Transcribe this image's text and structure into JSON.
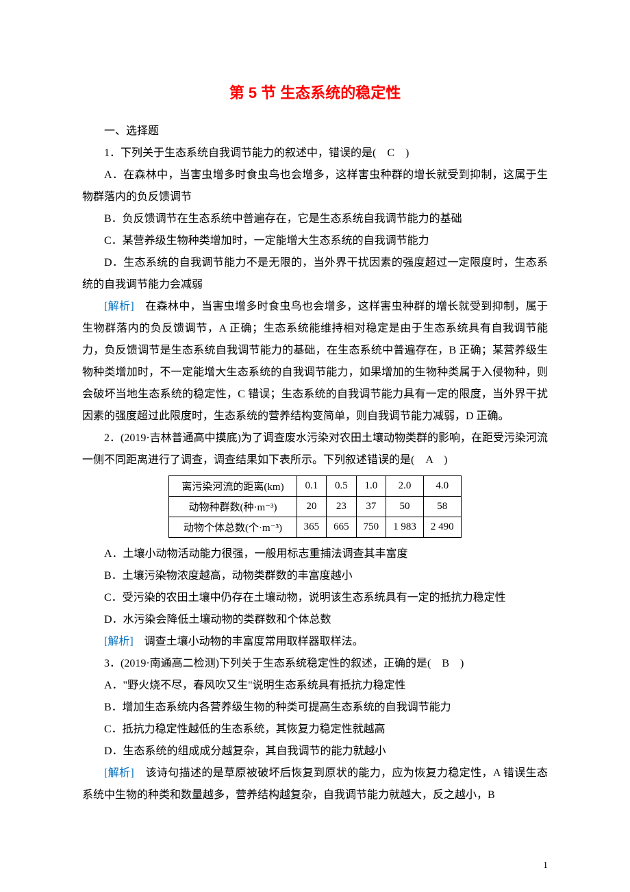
{
  "title": "第 5 节 生态系统的稳定性",
  "section1": "一、选择题",
  "q1": {
    "stem": "1．下列关于生态系统自我调节能力的叙述中，错误的是(　C　)",
    "A": "A．在森林中，当害虫增多时食虫鸟也会增多，这样害虫种群的增长就受到抑制，这属于生物群落内的负反馈调节",
    "B": "B．负反馈调节在生态系统中普遍存在，它是生态系统自我调节能力的基础",
    "C": "C．某营养级生物种类增加时，一定能增大生态系统的自我调节能力",
    "D": "D．生态系统的自我调节能力不是无限的，当外界干扰因素的强度超过一定限度时，生态系统的自我调节能力会减弱",
    "jiexi_label": "[解析]",
    "jiexi": "　在森林中，当害虫增多时食虫鸟也会增多，这样害虫种群的增长就受到抑制，属于生物群落内的负反馈调节，A 正确；生态系统能维持相对稳定是由于生态系统具有自我调节能力，负反馈调节是生态系统自我调节能力的基础，在生态系统中普遍存在，B 正确；某营养级生物种类增加时，不一定能增大生态系统的自我调节能力，如果增加的生物种类属于入侵物种，则会破坏当地生态系统的稳定性，C 错误；生态系统的自我调节能力具有一定的限度，当外界干扰因素的强度超过此限度时，生态系统的营养结构变简单，则自我调节能力减弱，D 正确。"
  },
  "q2": {
    "stem": "2．(2019·吉林普通高中摸底)为了调查废水污染对农田土壤动物类群的影响，在距受污染河流一侧不同距离进行了调查，调查结果如下表所示。下列叙述错误的是(　A　)",
    "table": {
      "rows": [
        {
          "label": "离污染河流的距离(km)",
          "c1": "0.1",
          "c2": "0.5",
          "c3": "1.0",
          "c4": "2.0",
          "c5": "4.0"
        },
        {
          "label": "动物种群数(种·m⁻³)",
          "c1": "20",
          "c2": "23",
          "c3": "37",
          "c4": "50",
          "c5": "58"
        },
        {
          "label": "动物个体总数(个·m⁻³)",
          "c1": "365",
          "c2": "665",
          "c3": "750",
          "c4": "1 983",
          "c5": "2 490"
        }
      ]
    },
    "A": "A．土壤小动物活动能力很强，一般用标志重捕法调查其丰富度",
    "B": "B．土壤污染物浓度越高，动物类群数的丰富度越小",
    "C": "C．受污染的农田土壤中仍存在土壤动物，说明该生态系统具有一定的抵抗力稳定性",
    "D": "D．水污染会降低土壤动物的类群数和个体总数",
    "jiexi_label": "[解析]",
    "jiexi": "　调查土壤小动物的丰富度常用取样器取样法。"
  },
  "q3": {
    "stem": "3．(2019·南通高二检测)下列关于生态系统稳定性的叙述，正确的是(　B　)",
    "A": "A．\"野火烧不尽，春风吹又生\"说明生态系统具有抵抗力稳定性",
    "B": "B．增加生态系统内各营养级生物的种类可提高生态系统的自我调节能力",
    "C": "C．抵抗力稳定性越低的生态系统，其恢复力稳定性就越高",
    "D": "D．生态系统的组成成分越复杂，其自我调节的能力就越小",
    "jiexi_label": "[解析]",
    "jiexi": "　该诗句描述的是草原被破坏后恢复到原状的能力，应为恢复力稳定性，A 错误生态系统中生物的种类和数量越多，营养结构越复杂，自我调节能力就越大，反之越小，B"
  },
  "page_number": "1",
  "colors": {
    "title": "#ff0000",
    "jiexi": "#0070c0",
    "text": "#000000",
    "background": "#ffffff",
    "table_border": "#000000"
  }
}
